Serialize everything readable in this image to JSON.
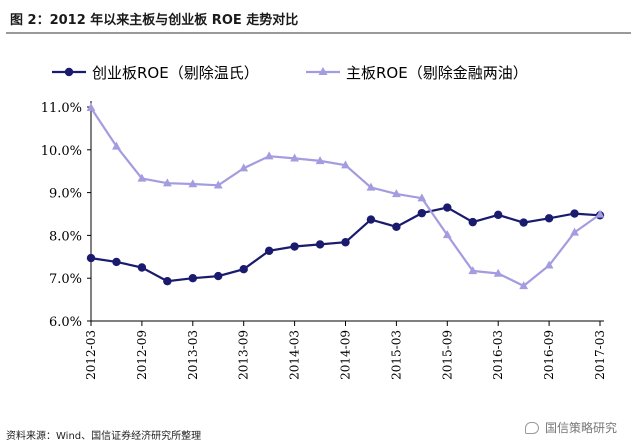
{
  "figure": {
    "title": "图 2：2012 年以来主板与创业板 ROE 走势对比"
  },
  "source_note": "资料来源：Wind、国信证券经济研究所整理",
  "watermark": "国信策略研究",
  "chart_data": {
    "type": "line",
    "x_tick_labels": [
      "2012-03",
      "2012-09",
      "2013-03",
      "2013-09",
      "2014-03",
      "2014-09",
      "2015-03",
      "2015-09",
      "2016-03",
      "2016-09",
      "2017-03"
    ],
    "x": [
      "2012-03",
      "2012-06",
      "2012-09",
      "2012-12",
      "2013-03",
      "2013-06",
      "2013-09",
      "2013-12",
      "2014-03",
      "2014-06",
      "2014-09",
      "2014-12",
      "2015-03",
      "2015-06",
      "2015-09",
      "2015-12",
      "2016-03",
      "2016-06",
      "2016-09",
      "2016-12",
      "2017-03"
    ],
    "y_ticks": [
      "6.0%",
      "7.0%",
      "8.0%",
      "9.0%",
      "10.0%",
      "11.0%"
    ],
    "ylim": [
      6.0,
      11.0
    ],
    "grid": false,
    "legend_position": "top",
    "series": [
      {
        "name": "创业板ROE（剔除温氏）",
        "color": "#1a1a6e",
        "marker": "circle",
        "values": [
          7.47,
          7.38,
          7.25,
          6.93,
          7.0,
          7.05,
          7.21,
          7.64,
          7.74,
          7.79,
          7.84,
          8.37,
          8.2,
          8.52,
          8.65,
          8.31,
          8.48,
          8.3,
          8.4,
          8.51,
          8.47
        ]
      },
      {
        "name": "主板ROE（剔除金融两油）",
        "color": "#a49ce0",
        "marker": "triangle",
        "values": [
          10.98,
          10.08,
          9.33,
          9.22,
          9.2,
          9.17,
          9.57,
          9.85,
          9.8,
          9.74,
          9.64,
          9.12,
          8.97,
          8.87,
          8.01,
          7.17,
          7.11,
          6.82,
          7.3,
          8.07,
          8.49
        ]
      }
    ]
  }
}
